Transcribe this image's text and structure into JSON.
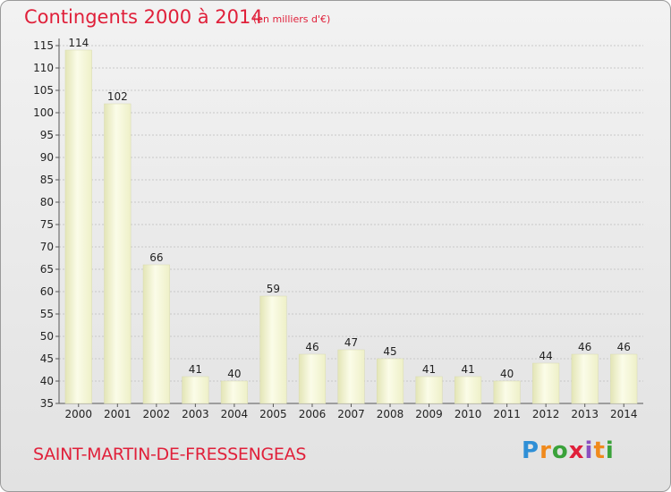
{
  "header": {
    "title": "Contingents 2000 à 2014",
    "subtitle": "(en milliers d'€)"
  },
  "footer": {
    "commune": "SAINT-MARTIN-DE-FRESSENGEAS",
    "logo": [
      "P",
      "r",
      "o",
      "x",
      "i",
      "t",
      "i"
    ]
  },
  "colors": {
    "accent": "#e0203a",
    "bar_light": "#fbfce6",
    "bar_dark": "#e4e6b8",
    "grid": "#c8c8c8"
  },
  "chart_data": {
    "type": "bar",
    "title": "Contingents 2000 à 2014",
    "subtitle": "(en milliers d'€)",
    "xlabel": "",
    "ylabel": "",
    "categories": [
      "2000",
      "2001",
      "2002",
      "2003",
      "2004",
      "2005",
      "2006",
      "2007",
      "2008",
      "2009",
      "2010",
      "2011",
      "2012",
      "2013",
      "2014"
    ],
    "values": [
      114,
      102,
      66,
      41,
      40,
      59,
      46,
      47,
      45,
      41,
      41,
      40,
      44,
      46,
      46
    ],
    "ylim": [
      35,
      115
    ],
    "yticks": [
      35,
      40,
      45,
      50,
      55,
      60,
      65,
      70,
      75,
      80,
      85,
      90,
      95,
      100,
      105,
      110,
      115
    ],
    "grid": true,
    "legend": "none"
  }
}
